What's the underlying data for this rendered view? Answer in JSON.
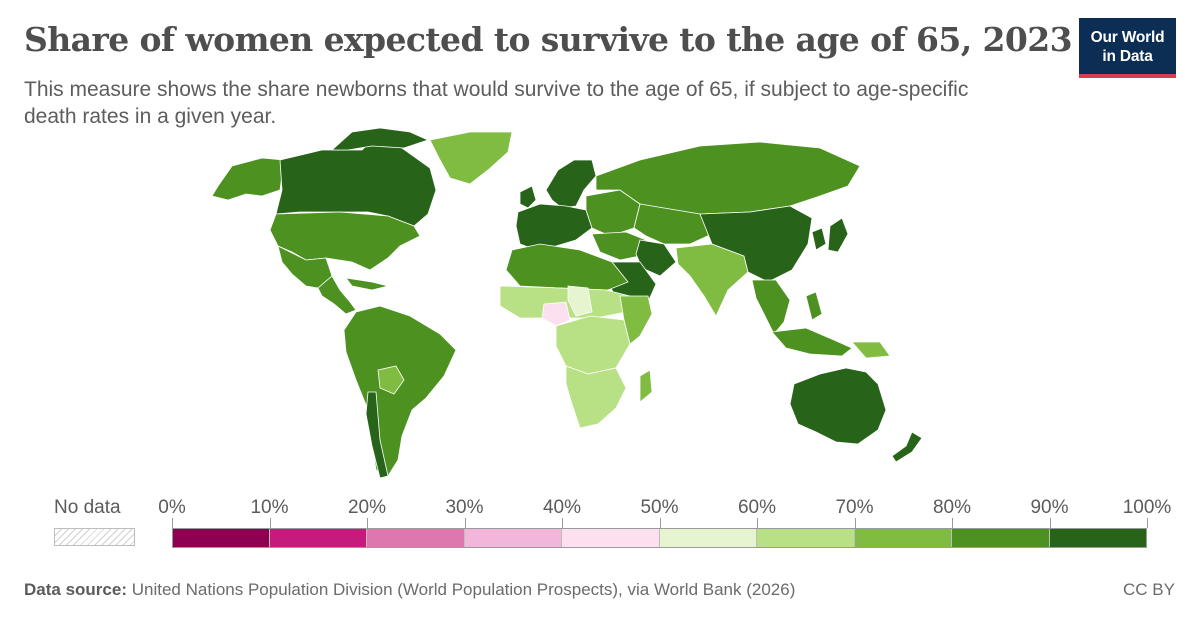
{
  "header": {
    "title": "Share of women expected to survive to the age of 65, 2023",
    "subtitle": "This measure shows the share newborns that would survive to the age of 65, if subject to age-specific death rates in a given year."
  },
  "logo": {
    "line1": "Our World",
    "line2": "in Data",
    "background": "#0c2d54",
    "accent": "#d73c50"
  },
  "legend": {
    "no_data_label": "No data",
    "ticks": [
      "0%",
      "10%",
      "20%",
      "30%",
      "40%",
      "50%",
      "60%",
      "70%",
      "80%",
      "90%",
      "100%"
    ],
    "colors": [
      "#8e0152",
      "#c51b7d",
      "#de77ae",
      "#f1b6da",
      "#fde0ef",
      "#e6f5d0",
      "#b8e186",
      "#7fbc41",
      "#4d9221",
      "#276419"
    ]
  },
  "map_regions": [
    {
      "name": "Canada",
      "level": "90-100%"
    },
    {
      "name": "Alaska",
      "level": "80-90%"
    },
    {
      "name": "Greenland",
      "level": "70-80%"
    },
    {
      "name": "United States",
      "level": "80-90%"
    },
    {
      "name": "Mexico",
      "level": "80-90%"
    },
    {
      "name": "Central America",
      "level": "80-90%"
    },
    {
      "name": "South America",
      "level": "80-90%"
    },
    {
      "name": "Bolivia",
      "level": "70-80%"
    },
    {
      "name": "Chile",
      "level": "90-100%"
    },
    {
      "name": "Western Europe",
      "level": "90-100%"
    },
    {
      "name": "Scandinavia",
      "level": "90-100%"
    },
    {
      "name": "Eastern Europe",
      "level": "80-90%"
    },
    {
      "name": "Russia",
      "level": "80-90%"
    },
    {
      "name": "Central Asia",
      "level": "80-90%"
    },
    {
      "name": "Middle East",
      "level": "80-90%"
    },
    {
      "name": "Arabian Peninsula",
      "level": "90-100%"
    },
    {
      "name": "Iran",
      "level": "90-100%"
    },
    {
      "name": "South Asia",
      "level": "70-80%"
    },
    {
      "name": "China",
      "level": "90-100%"
    },
    {
      "name": "Korea",
      "level": "90-100%"
    },
    {
      "name": "Japan",
      "level": "90-100%"
    },
    {
      "name": "Southeast Asia",
      "level": "80-90%"
    },
    {
      "name": "Indonesia",
      "level": "80-90%"
    },
    {
      "name": "Papua New Guinea",
      "level": "70-80%"
    },
    {
      "name": "Australia",
      "level": "90-100%"
    },
    {
      "name": "New Zealand",
      "level": "90-100%"
    },
    {
      "name": "North Africa",
      "level": "80-90%"
    },
    {
      "name": "Sahel",
      "level": "60-70%"
    },
    {
      "name": "West Africa",
      "level": "60-70%"
    },
    {
      "name": "Nigeria",
      "level": "40-50%"
    },
    {
      "name": "Chad",
      "level": "50-60%"
    },
    {
      "name": "Central Africa",
      "level": "60-70%"
    },
    {
      "name": "East Africa",
      "level": "70-80%"
    },
    {
      "name": "Southern Africa",
      "level": "60-70%"
    },
    {
      "name": "Madagascar",
      "level": "70-80%"
    }
  ],
  "footer": {
    "source_label": "Data source:",
    "source_text": "United Nations Population Division (World Population Prospects), via World Bank (2026)",
    "license": "CC BY"
  }
}
